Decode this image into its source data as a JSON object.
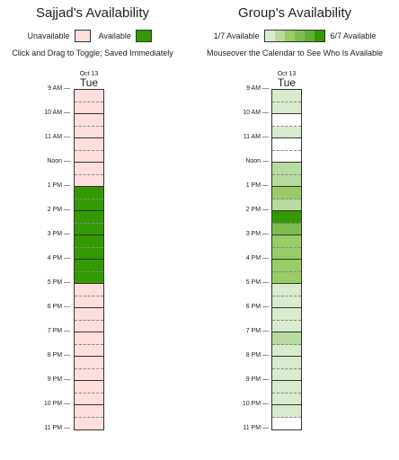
{
  "personal": {
    "title": "Sajjad's Availability",
    "legend_unavailable": "Unavailable",
    "legend_available": "Available",
    "hint": "Click and Drag to Toggle; Saved Immediately",
    "date": "Oct 13",
    "day": "Tue",
    "slot_states": [
      0,
      0,
      0,
      0,
      0,
      0,
      0,
      0,
      1,
      1,
      1,
      1,
      1,
      1,
      1,
      1,
      0,
      0,
      0,
      0,
      0,
      0,
      0,
      0,
      0,
      0,
      0,
      0
    ]
  },
  "group": {
    "title": "Group's Availability",
    "legend_min": "1/7 Available",
    "legend_max": "6/7 Available",
    "hint": "Mouseover the Calendar to See Who Is Available",
    "date": "Oct 13",
    "day": "Tue",
    "slot_counts": [
      1,
      1,
      0,
      1,
      0,
      0,
      2,
      2,
      3,
      2,
      6,
      4,
      3,
      3,
      3,
      3,
      1,
      1,
      1,
      1,
      2,
      1,
      1,
      1,
      1,
      1,
      1,
      0
    ]
  },
  "time_labels": [
    "9 AM",
    "10 AM",
    "11 AM",
    "Noon",
    "1 PM",
    "2 PM",
    "3 PM",
    "4 PM",
    "5 PM",
    "6 PM",
    "7 PM",
    "8 PM",
    "9 PM",
    "10 PM",
    "11 PM"
  ],
  "colors": {
    "unavailable": "#ffdede",
    "available": "#339900",
    "group_scale": [
      "#ffffff",
      "#d8ebcc",
      "#b8db9f",
      "#99cc66",
      "#7dbd4f",
      "#5fae32",
      "#339900"
    ]
  }
}
